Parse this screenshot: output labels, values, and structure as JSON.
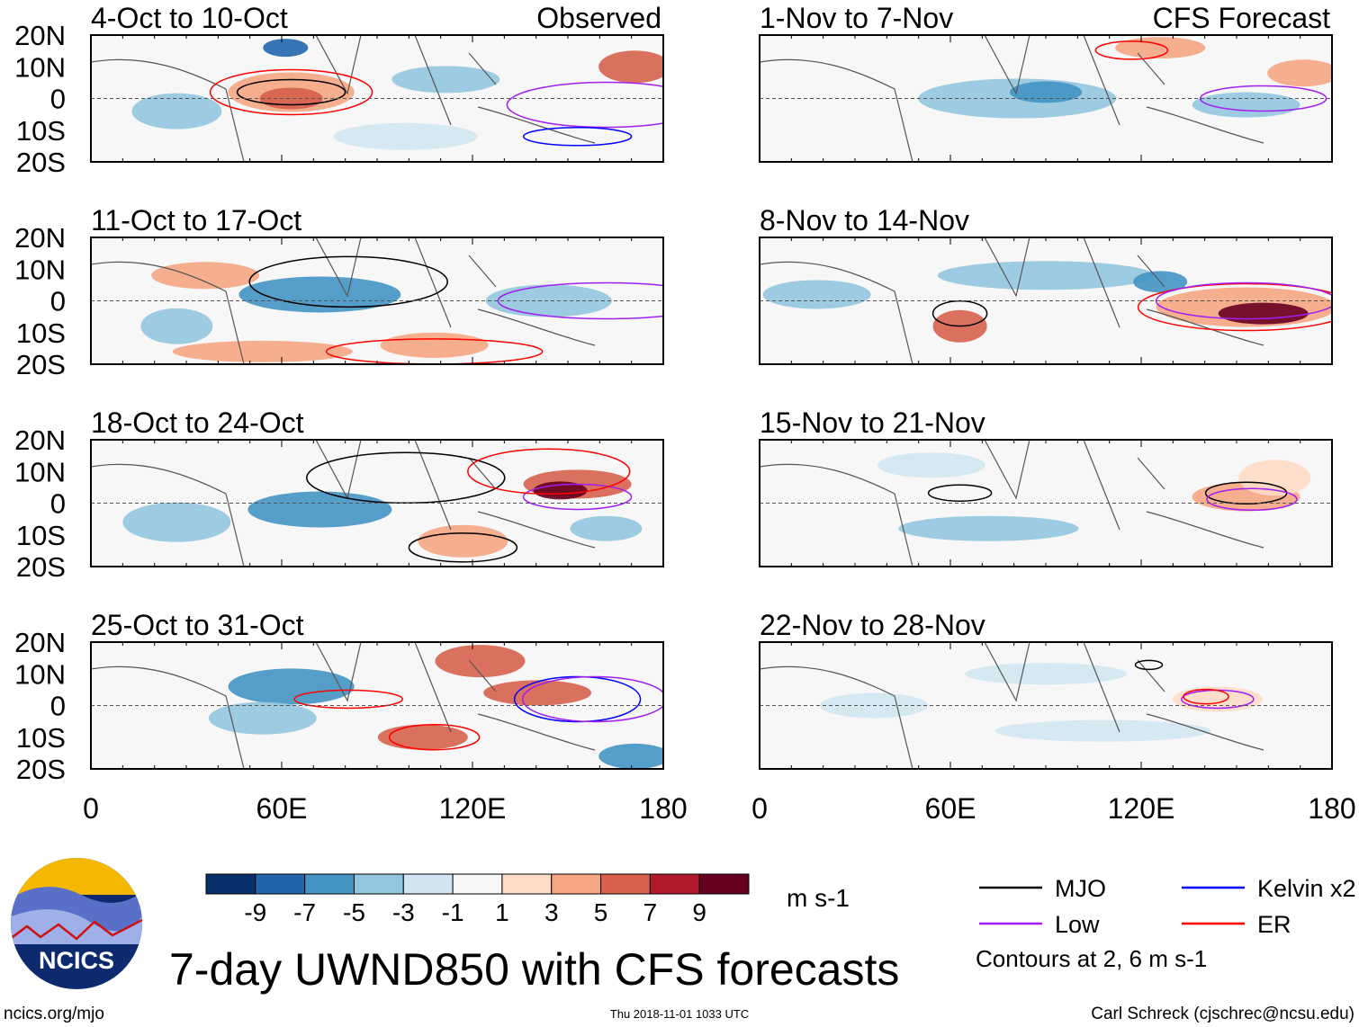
{
  "chart_data": {
    "type": "heatmap",
    "title": "7-day UWND850 with CFS forecasts",
    "units": "m s-1",
    "lat_ticks": [
      "20N",
      "10N",
      "0",
      "10S",
      "20S"
    ],
    "lon_ticks": [
      "0",
      "60E",
      "120E",
      "180"
    ],
    "lon_range": [
      0,
      180
    ],
    "lat_range": [
      -20,
      20
    ],
    "columns": [
      {
        "header": "Observed",
        "panels": [
          "4-Oct to 10-Oct",
          "11-Oct to 17-Oct",
          "18-Oct to 24-Oct",
          "25-Oct to 31-Oct"
        ]
      },
      {
        "header": "CFS Forecast",
        "panels": [
          "1-Nov to 7-Nov",
          "8-Nov to 14-Nov",
          "15-Nov to 21-Nov",
          "22-Nov to 28-Nov"
        ]
      }
    ],
    "colorbar": {
      "levels": [
        "-9",
        "-7",
        "-5",
        "-3",
        "-1",
        "1",
        "3",
        "5",
        "7",
        "9"
      ],
      "colors": [
        "#08306b",
        "#2166ac",
        "#4393c3",
        "#92c5de",
        "#d1e5f0",
        "#f7f7f7",
        "#fddbc7",
        "#f4a582",
        "#d6604d",
        "#b2182b",
        "#67001f"
      ]
    },
    "legend": [
      {
        "label": "MJO",
        "color": "#000000"
      },
      {
        "label": "Kelvin x2",
        "color": "#0000ff"
      },
      {
        "label": "Low",
        "color": "#a020f0"
      },
      {
        "label": "ER",
        "color": "#ff0000"
      }
    ],
    "contour_note": "Contours at 2, 6 m s-1"
  },
  "footer": {
    "logo_text": "NCICS",
    "url": "ncics.org/mjo",
    "timestamp": "Thu 2018-11-01 1033 UTC",
    "author": "Carl Schreck (cjschrec@ncsu.edu)"
  }
}
